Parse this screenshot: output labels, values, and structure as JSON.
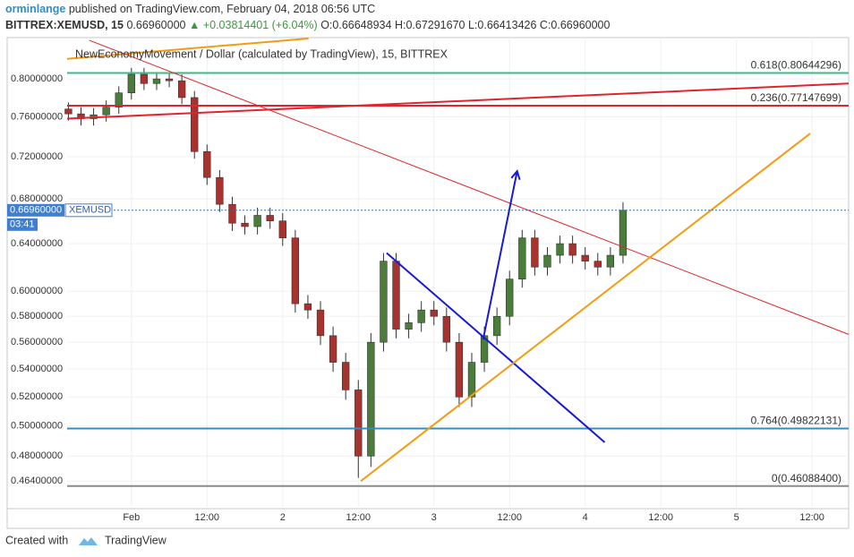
{
  "header": {
    "author": "orminlange",
    "published": "published on TradingView.com, February 04, 2018 06:56 UTC",
    "symbol": "BITTREX:XEMUSD, 15",
    "price": "0.66960000",
    "change": "▲ +0.03814401 (+6.04%)",
    "ohlc": [
      "O:0.66648934",
      "H:0.67291670",
      "L:0.66413426",
      "C:0.66960000"
    ]
  },
  "chart_data": {
    "type": "candlestick",
    "legend": "NewEconomyMovement / Dollar (calculated by TradingView), 15, BITTREX",
    "log_scale": true,
    "grid": true,
    "up_color": "#4b7d3a",
    "down_color": "#a8332e",
    "xlim": [
      -10.2,
      113.8
    ],
    "ylim": [
      0.447,
      0.846
    ],
    "xticks": [
      {
        "value": 0,
        "label": "Feb"
      },
      {
        "value": 12,
        "label": "12:00"
      },
      {
        "value": 24,
        "label": "2"
      },
      {
        "value": 36,
        "label": "12:00"
      },
      {
        "value": 48,
        "label": "3"
      },
      {
        "value": 60,
        "label": "12:00"
      },
      {
        "value": 72,
        "label": "4"
      },
      {
        "value": 84,
        "label": "12:00"
      },
      {
        "value": 96,
        "label": "5"
      },
      {
        "value": 108,
        "label": "12:00"
      }
    ],
    "yticks": [
      {
        "value": 0.8,
        "label": "0.80000000"
      },
      {
        "value": 0.76,
        "label": "0.76000000"
      },
      {
        "value": 0.72,
        "label": "0.72000000"
      },
      {
        "value": 0.68,
        "label": "0.68000000"
      },
      {
        "value": 0.64,
        "label": "0.64000000"
      },
      {
        "value": 0.6,
        "label": "0.60000000"
      },
      {
        "value": 0.58,
        "label": "0.58000000"
      },
      {
        "value": 0.56,
        "label": "0.56000000"
      },
      {
        "value": 0.54,
        "label": "0.54000000"
      },
      {
        "value": 0.52,
        "label": "0.52000000"
      },
      {
        "value": 0.5,
        "label": "0.50000000"
      },
      {
        "value": 0.48,
        "label": "0.48000000"
      },
      {
        "value": 0.464,
        "label": "0.46400000"
      }
    ],
    "candles": {
      "x": [
        -10,
        -8,
        -6,
        -4,
        -2,
        0,
        2,
        4,
        6,
        8,
        10,
        12,
        14,
        16,
        18,
        20,
        22,
        24,
        26,
        28,
        30,
        32,
        34,
        36,
        38,
        40,
        42,
        44,
        46,
        48,
        50,
        52,
        54,
        56,
        58,
        60,
        62,
        64,
        66,
        68,
        70,
        72,
        74,
        76,
        78
      ],
      "open": [
        0.768,
        0.763,
        0.758,
        0.762,
        0.77,
        0.785,
        0.805,
        0.795,
        0.8,
        0.798,
        0.78,
        0.725,
        0.7,
        0.675,
        0.658,
        0.655,
        0.665,
        0.66,
        0.645,
        0.59,
        0.585,
        0.565,
        0.545,
        0.525,
        0.48,
        0.56,
        0.625,
        0.57,
        0.575,
        0.585,
        0.58,
        0.56,
        0.52,
        0.545,
        0.565,
        0.58,
        0.61,
        0.645,
        0.62,
        0.63,
        0.64,
        0.63,
        0.625,
        0.62,
        0.63
      ],
      "high": [
        0.775,
        0.77,
        0.769,
        0.777,
        0.792,
        0.812,
        0.812,
        0.807,
        0.807,
        0.805,
        0.787,
        0.732,
        0.707,
        0.682,
        0.665,
        0.672,
        0.672,
        0.667,
        0.652,
        0.597,
        0.592,
        0.572,
        0.552,
        0.532,
        0.567,
        0.632,
        0.632,
        0.582,
        0.592,
        0.592,
        0.587,
        0.567,
        0.552,
        0.572,
        0.587,
        0.617,
        0.652,
        0.652,
        0.637,
        0.647,
        0.647,
        0.637,
        0.632,
        0.637,
        0.677
      ],
      "low": [
        0.756,
        0.751,
        0.751,
        0.755,
        0.763,
        0.778,
        0.788,
        0.788,
        0.791,
        0.773,
        0.718,
        0.693,
        0.668,
        0.651,
        0.648,
        0.648,
        0.653,
        0.638,
        0.583,
        0.578,
        0.558,
        0.538,
        0.518,
        0.466,
        0.473,
        0.553,
        0.563,
        0.563,
        0.568,
        0.573,
        0.553,
        0.513,
        0.513,
        0.538,
        0.558,
        0.573,
        0.603,
        0.613,
        0.613,
        0.623,
        0.623,
        0.618,
        0.613,
        0.613,
        0.623
      ],
      "close": [
        0.763,
        0.758,
        0.762,
        0.77,
        0.785,
        0.805,
        0.795,
        0.8,
        0.798,
        0.78,
        0.725,
        0.7,
        0.675,
        0.658,
        0.655,
        0.665,
        0.66,
        0.645,
        0.59,
        0.585,
        0.565,
        0.545,
        0.525,
        0.48,
        0.56,
        0.625,
        0.57,
        0.575,
        0.585,
        0.58,
        0.56,
        0.52,
        0.545,
        0.565,
        0.58,
        0.61,
        0.645,
        0.62,
        0.63,
        0.64,
        0.63,
        0.625,
        0.62,
        0.63,
        0.6696
      ]
    },
    "fib_levels": [
      {
        "value": 0.80644296,
        "label": "0.618(0.80644296)",
        "color": "#3cb88a"
      },
      {
        "value": 0.77147699,
        "label": "0.236(0.77147699)",
        "color": "#e0252a"
      },
      {
        "value": 0.49822131,
        "label": "0.764(0.49822131)",
        "color": "#2f8fc4"
      },
      {
        "value": 0.460884,
        "label": "0(0.46088400)",
        "color": "#8a8a8a"
      }
    ],
    "drawings": [
      {
        "x": [
          -10.2,
          28.1
        ],
        "y": [
          0.822,
          0.845
        ],
        "color": "#f39c12",
        "width": 2
      },
      {
        "x": [
          -10.2,
          113.8
        ],
        "y": [
          0.758,
          0.795
        ],
        "color": "#e0252a",
        "width": 2
      },
      {
        "x": [
          -6.7,
          113.8
        ],
        "y": [
          0.843,
          0.566
        ],
        "color": "#e0252a",
        "width": 1
      },
      {
        "x": [
          40.5,
          75.1
        ],
        "y": [
          0.632,
          0.489
        ],
        "color": "#1a1ad6",
        "width": 2
      },
      {
        "x": [
          55.8,
          61.2
        ],
        "y": [
          0.562,
          0.706
        ],
        "color": "#1a1ad6",
        "width": 2,
        "arrow": true
      },
      {
        "x": [
          36.4,
          107.7
        ],
        "y": [
          0.464,
          0.743
        ],
        "color": "#f39c12",
        "width": 2
      }
    ],
    "last_price": {
      "value": 0.6696,
      "label": "0.66960000"
    },
    "symbol": "XEMUSD",
    "countdown": "03:41"
  },
  "footer": {
    "created": "Created with",
    "brand": "TradingView"
  }
}
